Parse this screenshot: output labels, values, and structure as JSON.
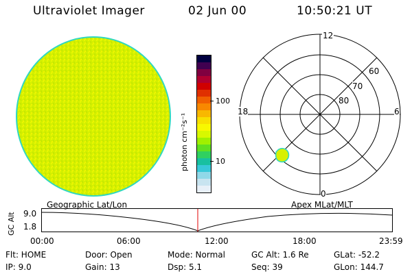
{
  "header": {
    "instrument": "Ultraviolet Imager",
    "date": "02 Jun 00",
    "time": "10:50:21 UT"
  },
  "colorbar": {
    "label": "photon cm⁻²s⁻¹",
    "ticks": [
      "100",
      "10"
    ],
    "colors": [
      "#e8f0f8",
      "#c8e4f0",
      "#90d8e8",
      "#38c8d8",
      "#18c0a0",
      "#30d060",
      "#60e020",
      "#a0f000",
      "#d8f800",
      "#f8f800",
      "#f8e000",
      "#f8b800",
      "#f88800",
      "#f06000",
      "#e03000",
      "#d00000",
      "#b00030",
      "#800040",
      "#400050",
      "#000040"
    ]
  },
  "polar": {
    "mlt_labels": [
      "12",
      "18",
      "6",
      "0"
    ],
    "lat_labels": [
      "60",
      "70",
      "80"
    ],
    "patch_color": "#d8f000"
  },
  "disk": {
    "fill": "#d8f000",
    "edge": "#30d8c0"
  },
  "timeline": {
    "left_label": "Geographic Lat/Lon",
    "right_label": "Apex MLat/MLT",
    "axis_label": "GC Alt",
    "y_max": "9.0",
    "y_min": "1.8",
    "x_ticks": [
      "00:00",
      "06:00",
      "12:00",
      "18:00",
      "23:59"
    ],
    "marker_color": "#e00000"
  },
  "info": {
    "flt": "Flt: HOME",
    "ip": "IP:  9.0",
    "door": "Door: Open",
    "gain": "Gain: 13",
    "mode": "Mode: Normal",
    "dsp": "Dsp:     5.1",
    "gcalt": "GC Alt: 1.6 Re",
    "seq": "Seq: 39",
    "glat": "GLat:  -52.2",
    "glon": "GLon:  144.7"
  }
}
